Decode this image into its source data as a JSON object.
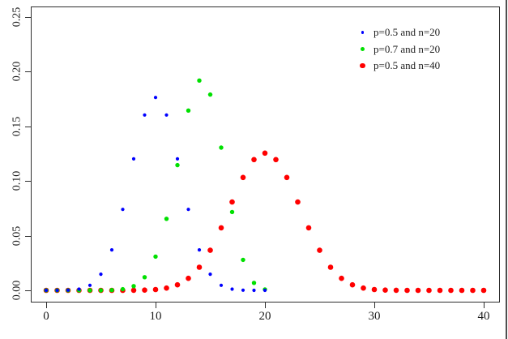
{
  "window": {
    "right_border_color": "#4f4f4f"
  },
  "legend": {
    "items": [
      {
        "label": "p=0.5 and n=20",
        "color": "#0000ff"
      },
      {
        "label": "p=0.7 and n=20",
        "color": "#00e000"
      },
      {
        "label": "p=0.5 and n=40",
        "color": "#ff0000"
      }
    ]
  },
  "chart_data": {
    "type": "scatter",
    "title": "",
    "xlabel": "",
    "ylabel": "",
    "grid": false,
    "legend_position": "top-right",
    "xlim": [
      -1.41,
      41.48
    ],
    "ylim": [
      -0.0111,
      0.2593
    ],
    "x_ticks": {
      "values": [
        0,
        10,
        20,
        30,
        40
      ],
      "labels": [
        "0",
        "10",
        "20",
        "30",
        "40"
      ]
    },
    "y_ticks": {
      "values": [
        0,
        0.05,
        0.1,
        0.15,
        0.2,
        0.25
      ],
      "labels": [
        "0.00",
        "0.05",
        "0.10",
        "0.15",
        "0.20",
        "0.25"
      ]
    },
    "series": [
      {
        "name": "p=0.5 and n=20",
        "distribution": "binomial pmf, n=20, p=0.5",
        "color": "#0000ff",
        "marker": "circle",
        "marker_diameter_px": 4.2,
        "x": [
          0,
          1,
          2,
          3,
          4,
          5,
          6,
          7,
          8,
          9,
          10,
          11,
          12,
          13,
          14,
          15,
          16,
          17,
          18,
          19,
          20
        ],
        "y": [
          1e-06,
          1.9e-05,
          0.000181,
          0.001087,
          0.004621,
          0.014786,
          0.036964,
          0.073929,
          0.120134,
          0.160179,
          0.176197,
          0.160179,
          0.120134,
          0.073929,
          0.036964,
          0.014786,
          0.004621,
          0.001087,
          0.000181,
          1.9e-05,
          1e-06
        ]
      },
      {
        "name": "p=0.7 and n=20",
        "distribution": "binomial pmf, n=20, p=0.7",
        "color": "#00e000",
        "marker": "circle",
        "marker_diameter_px": 5.4,
        "x": [
          0,
          1,
          2,
          3,
          4,
          5,
          6,
          7,
          8,
          9,
          10,
          11,
          12,
          13,
          14,
          15,
          16,
          17,
          18,
          19,
          20
        ],
        "y": [
          0,
          0,
          0,
          5e-07,
          5e-06,
          3.7e-05,
          0.000218,
          0.001018,
          0.003859,
          0.012007,
          0.030817,
          0.06537,
          0.114397,
          0.164262,
          0.191639,
          0.178863,
          0.130421,
          0.071604,
          0.027846,
          0.006839,
          0.000798
        ]
      },
      {
        "name": "p=0.5 and n=40",
        "distribution": "binomial pmf, n=40, p=0.5",
        "color": "#ff0000",
        "marker": "circle",
        "marker_diameter_px": 6.6,
        "x": [
          0,
          1,
          2,
          3,
          4,
          5,
          6,
          7,
          8,
          9,
          10,
          11,
          12,
          13,
          14,
          15,
          16,
          17,
          18,
          19,
          20,
          21,
          22,
          23,
          24,
          25,
          26,
          27,
          28,
          29,
          30,
          31,
          32,
          33,
          34,
          35,
          36,
          37,
          38,
          39,
          40
        ],
        "y": [
          0,
          0,
          0,
          0,
          0,
          1e-06,
          3e-06,
          1.7e-05,
          7e-05,
          0.000249,
          0.000771,
          0.002103,
          0.005081,
          0.010944,
          0.021107,
          0.036585,
          0.05716,
          0.080701,
          0.103122,
          0.1194,
          0.125371,
          0.1194,
          0.103122,
          0.080701,
          0.05716,
          0.036585,
          0.021107,
          0.010944,
          0.005081,
          0.002103,
          0.000771,
          0.000249,
          7e-05,
          1.7e-05,
          3e-06,
          1e-06,
          0,
          0,
          0,
          0,
          0
        ]
      }
    ]
  }
}
